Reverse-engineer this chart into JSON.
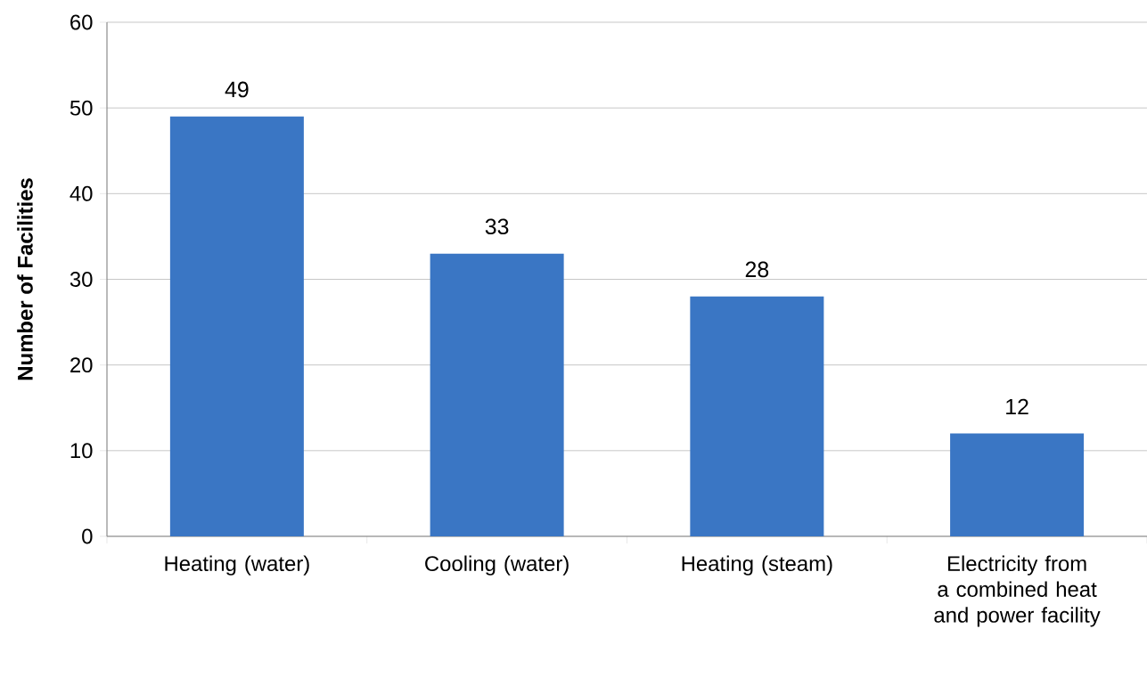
{
  "chart_data": {
    "type": "bar",
    "ylabel": "Number of Facilities",
    "categories": [
      "Heating (water)",
      "Cooling (water)",
      "Heating (steam)",
      "Electricity from a combined heat and power facility"
    ],
    "values": [
      49,
      33,
      28,
      12
    ],
    "color": "#3a76c4",
    "ylim": [
      0,
      60
    ],
    "yticks": [
      0,
      10,
      20,
      30,
      40,
      50,
      60
    ],
    "grid": "y",
    "data_labels": true
  }
}
